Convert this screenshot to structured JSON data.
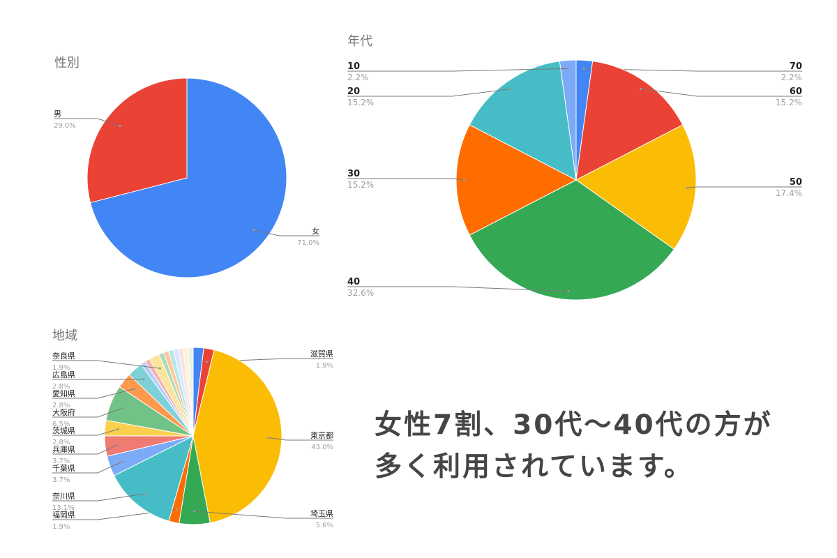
{
  "message": {
    "line1": "女性7割、30代〜40代の方が",
    "line2": "多く利用されています。"
  },
  "chart_data": [
    {
      "type": "pie",
      "title": "性別",
      "categories": [
        "女",
        "男"
      ],
      "values": [
        71.0,
        29.0
      ],
      "value_labels": [
        "71.0%",
        "29.0%"
      ],
      "colors": [
        "#4285F4",
        "#EA4335"
      ]
    },
    {
      "type": "pie",
      "title": "年代",
      "categories": [
        "70",
        "60",
        "50",
        "40",
        "30",
        "20",
        "10"
      ],
      "values": [
        2.2,
        15.2,
        17.4,
        32.6,
        15.2,
        15.2,
        2.2
      ],
      "value_labels": [
        "2.2%",
        "15.2%",
        "17.4%",
        "32.6%",
        "15.2%",
        "15.2%",
        "2.2%"
      ],
      "colors": [
        "#4285F4",
        "#EA4335",
        "#FBBC04",
        "#34A853",
        "#FF6D01",
        "#46BDC6",
        "#7BAAF7"
      ]
    },
    {
      "type": "pie",
      "title": "地域",
      "categories": [
        "",
        "滋賀県",
        "東京都",
        "埼玉県",
        "福岡県",
        "奈川県",
        "千葉県",
        "兵庫県",
        "茨城県",
        "大阪府",
        "愛知県",
        "広島県",
        "",
        "",
        "奈良県",
        "",
        "",
        "",
        "",
        "",
        "",
        ""
      ],
      "values": [
        1.9,
        1.9,
        43.0,
        5.6,
        1.9,
        13.1,
        3.7,
        3.7,
        2.8,
        6.5,
        2.8,
        2.8,
        0.9,
        0.9,
        1.9,
        0.9,
        0.9,
        0.9,
        0.9,
        0.9,
        0.9,
        0.9
      ],
      "value_labels": [
        "",
        "1.9%",
        "43.0%",
        "5.6%",
        "1.9%",
        "13.1%",
        "3.7%",
        "3.7%",
        "2.8%",
        "6.5%",
        "2.8%",
        "2.8%",
        "",
        "",
        "1.9%",
        "",
        "",
        "",
        "",
        "",
        "",
        ""
      ],
      "colors": [
        "#4285F4",
        "#EA4335",
        "#FBBC04",
        "#34A853",
        "#FF6D01",
        "#46BDC6",
        "#7BAAF7",
        "#F07B72",
        "#FCD04F",
        "#71C287",
        "#FF994D",
        "#7ED1D7",
        "#B3CEFB",
        "#F7B4AE",
        "#FDE49B",
        "#AEDCBA",
        "#FFC599",
        "#B5E5E8",
        "#D9E6FD",
        "#FBE1DF",
        "#FEF3D6",
        "#E3F3E7"
      ]
    }
  ]
}
